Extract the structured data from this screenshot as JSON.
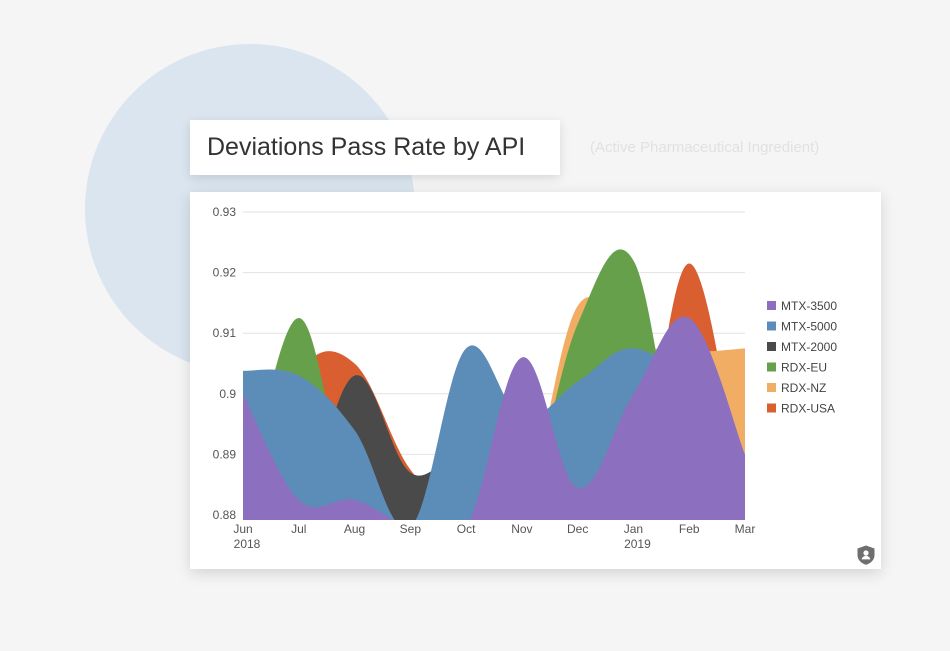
{
  "title": "Deviations Pass Rate by API",
  "subtitle": "(Active Pharmaceutical Ingredient)",
  "chart_data": {
    "type": "area",
    "stacked": false,
    "smooth": true,
    "categories": [
      {
        "line1": "Jun",
        "line2": "2018"
      },
      {
        "line1": "Jul",
        "line2": ""
      },
      {
        "line1": "Aug",
        "line2": ""
      },
      {
        "line1": "Sep",
        "line2": ""
      },
      {
        "line1": "Oct",
        "line2": ""
      },
      {
        "line1": "Nov",
        "line2": ""
      },
      {
        "line1": "Dec",
        "line2": ""
      },
      {
        "line1": "Jan",
        "line2": "2019"
      },
      {
        "line1": "Feb",
        "line2": ""
      },
      {
        "line1": "Mar",
        "line2": ""
      }
    ],
    "ylim": [
      0.88,
      0.93
    ],
    "yticks": [
      "0.88",
      "0.89",
      "0.9",
      "0.91",
      "0.92",
      "0.93"
    ],
    "grid": true,
    "legend_position": "right",
    "series": [
      {
        "name": "MTX-3500",
        "color": "#8c6fbf",
        "values": [
          0.9,
          0.8825,
          0.8825,
          0.878,
          0.878,
          0.906,
          0.8845,
          0.9,
          0.9125,
          0.89
        ]
      },
      {
        "name": "MTX-5000",
        "color": "#5b8db8",
        "values": [
          0.9038,
          0.903,
          0.894,
          0.878,
          0.9075,
          0.896,
          0.902,
          0.9075,
          0.9,
          0.88
        ]
      },
      {
        "name": "MTX-2000",
        "color": "#4a4a4a",
        "values": [
          0.88,
          0.88,
          0.903,
          0.887,
          0.89,
          0.88,
          0.88,
          0.88,
          0.88,
          0.88
        ]
      },
      {
        "name": "RDX-EU",
        "color": "#67a04a",
        "values": [
          0.88,
          0.9125,
          0.88,
          0.88,
          0.88,
          0.88,
          0.9115,
          0.922,
          0.88,
          0.88
        ]
      },
      {
        "name": "RDX-NZ",
        "color": "#f2ad64",
        "values": [
          0.88,
          0.88,
          0.88,
          0.88,
          0.88,
          0.88,
          0.9145,
          0.9085,
          0.907,
          0.9075
        ]
      },
      {
        "name": "RDX-USA",
        "color": "#d95f31",
        "values": [
          0.88,
          0.9035,
          0.905,
          0.8875,
          0.88,
          0.88,
          0.88,
          0.88,
          0.9215,
          0.88
        ]
      }
    ]
  }
}
